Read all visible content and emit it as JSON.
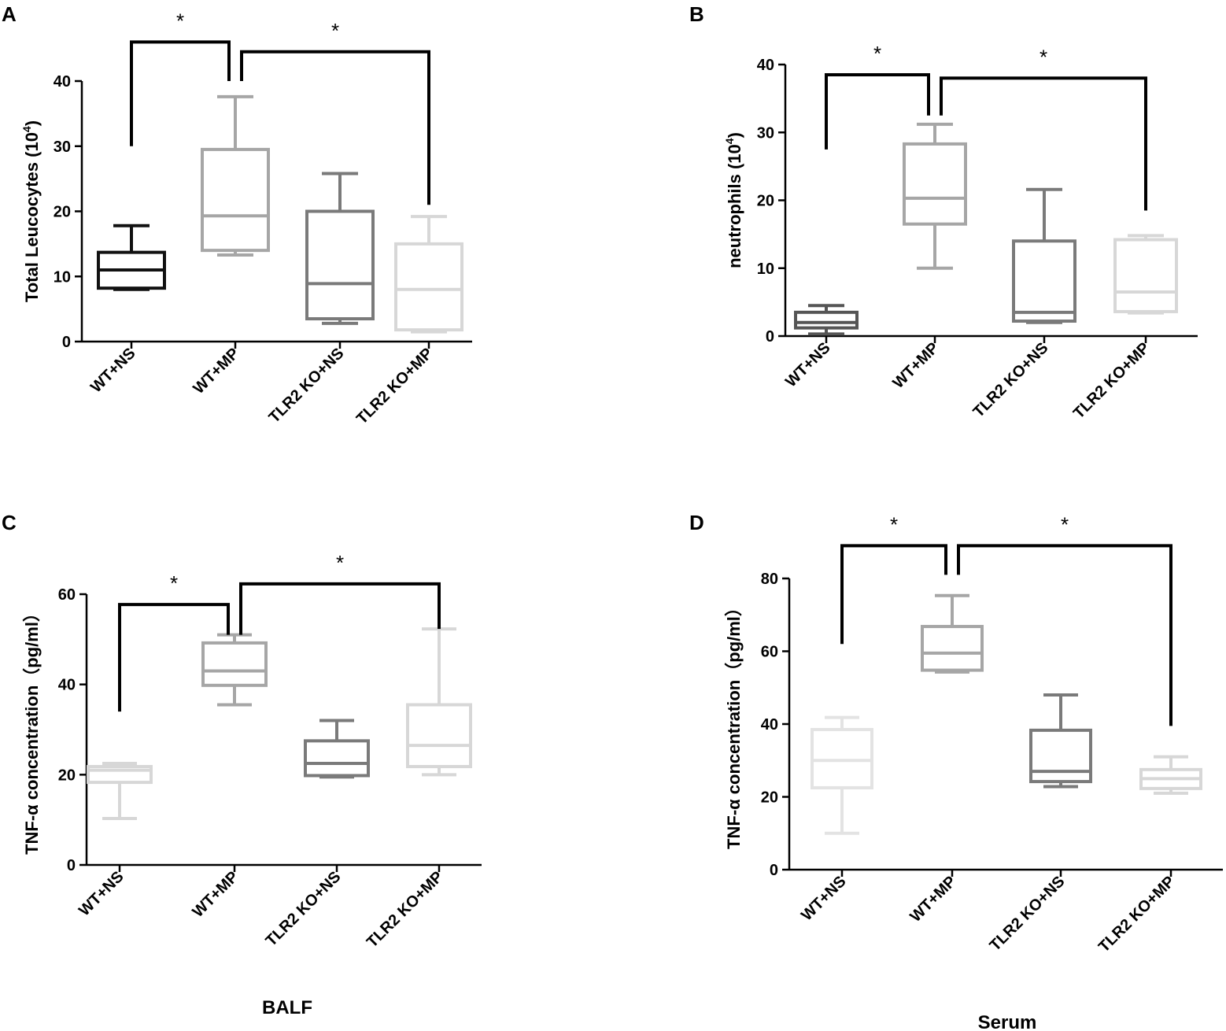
{
  "chart_data": [
    {
      "type": "box",
      "panel": "A",
      "ylabel": "Total Leucocytes (10",
      "ylabel_sup": "4",
      "ylabel_end": ")",
      "xlabel": "",
      "ylim": [
        0,
        40
      ],
      "yticks": [
        0,
        10,
        20,
        30,
        40
      ],
      "categories": [
        "WT+NS",
        "WT+MP",
        "TLR2 KO+NS",
        "TLR2 KO+MP"
      ],
      "colors": [
        "#111111",
        "#a6a6a6",
        "#7a7a7a",
        "#d7d7d7"
      ],
      "boxes": [
        {
          "min": 8,
          "q1": 8.2,
          "median": 11,
          "q3": 13.7,
          "max": 17.8
        },
        {
          "min": 13.3,
          "q1": 14,
          "median": 19.3,
          "q3": 29.5,
          "max": 37.6
        },
        {
          "min": 2.8,
          "q1": 3.5,
          "median": 8.9,
          "q3": 20,
          "max": 25.8
        },
        {
          "min": 1.5,
          "q1": 1.8,
          "median": 8,
          "q3": 15,
          "max": 19.2
        }
      ],
      "significance": [
        {
          "from": 0,
          "to": 1,
          "label": "*",
          "y_from": 30,
          "y_to": 40,
          "y_top": 46
        },
        {
          "from": 1,
          "to": 3,
          "label": "*",
          "y_from": 40,
          "y_to": 21,
          "y_top": 44.5
        }
      ]
    },
    {
      "type": "box",
      "panel": "B",
      "ylabel": "neutrophils (10",
      "ylabel_sup": "4",
      "ylabel_end": ")",
      "xlabel": "",
      "ylim": [
        0,
        40
      ],
      "yticks": [
        0,
        10,
        20,
        30,
        40
      ],
      "categories": [
        "WT+NS",
        "WT+MP",
        "TLR2 KO+NS",
        "TLR2 KO+MP"
      ],
      "colors": [
        "#555555",
        "#a6a6a6",
        "#7a7a7a",
        "#d7d7d7"
      ],
      "boxes": [
        {
          "min": 0.3,
          "q1": 1.2,
          "median": 2,
          "q3": 3.5,
          "max": 4.5
        },
        {
          "min": 10,
          "q1": 16.5,
          "median": 20.3,
          "q3": 28.3,
          "max": 31.2
        },
        {
          "min": 2,
          "q1": 2.2,
          "median": 3.5,
          "q3": 14,
          "max": 21.6
        },
        {
          "min": 3.4,
          "q1": 3.6,
          "median": 6.5,
          "q3": 14.2,
          "max": 14.8
        }
      ],
      "significance": [
        {
          "from": 0,
          "to": 1,
          "label": "*",
          "y_from": 27.5,
          "y_to": 32.5,
          "y_top": 38.5
        },
        {
          "from": 1,
          "to": 3,
          "label": "*",
          "y_from": 32.5,
          "y_to": 18.5,
          "y_top": 38
        }
      ]
    },
    {
      "type": "box",
      "panel": "C",
      "ylabel": "TNF-α concentration（pg/ml）",
      "ylabel_sup": "",
      "ylabel_end": "",
      "xlabel": "BALF",
      "ylim": [
        0,
        60
      ],
      "yticks": [
        0,
        20,
        40,
        60
      ],
      "categories": [
        "WT+NS",
        "WT+MP",
        "TLR2 KO+NS",
        "TLR2 KO+MP"
      ],
      "colors": [
        "#d7d7d7",
        "#a6a6a6",
        "#7a7a7a",
        "#d7d7d7"
      ],
      "boxes": [
        {
          "min": 10.3,
          "q1": 18.3,
          "median": 21,
          "q3": 21.8,
          "max": 22.5
        },
        {
          "min": 35.5,
          "q1": 39.8,
          "median": 43,
          "q3": 49.2,
          "max": 51
        },
        {
          "min": 19.5,
          "q1": 19.8,
          "median": 22.5,
          "q3": 27.5,
          "max": 32
        },
        {
          "min": 20,
          "q1": 21.8,
          "median": 26.5,
          "q3": 35.5,
          "max": 52.3
        }
      ],
      "significance": [
        {
          "from": 0,
          "to": 1,
          "label": "*",
          "y_from": 34,
          "y_to": 51,
          "y_top": 57.7
        },
        {
          "from": 1,
          "to": 3,
          "label": "*",
          "y_from": 51,
          "y_to": 52.3,
          "y_top": 62.3
        }
      ]
    },
    {
      "type": "box",
      "panel": "D",
      "ylabel": "TNF-α concentration（pg/ml）",
      "ylabel_sup": "",
      "ylabel_end": "",
      "xlabel": "Serum",
      "ylim": [
        0,
        80
      ],
      "yticks": [
        0,
        20,
        40,
        60,
        80
      ],
      "categories": [
        "WT+NS",
        "WT+MP",
        "TLR2 KO+NS",
        "TLR2 KO+MP"
      ],
      "colors": [
        "#e3e3e3",
        "#a6a6a6",
        "#7a7a7a",
        "#d7d7d7"
      ],
      "boxes": [
        {
          "min": 10,
          "q1": 22.5,
          "median": 30,
          "q3": 38.5,
          "max": 41.8
        },
        {
          "min": 54.3,
          "q1": 54.8,
          "median": 59.5,
          "q3": 66.8,
          "max": 75.3
        },
        {
          "min": 22.8,
          "q1": 24.2,
          "median": 27,
          "q3": 38.3,
          "max": 48
        },
        {
          "min": 21,
          "q1": 22.3,
          "median": 25,
          "q3": 27.5,
          "max": 31
        }
      ],
      "significance": [
        {
          "from": 0,
          "to": 1,
          "label": "*",
          "y_from": 62,
          "y_to": 81,
          "y_top": 89
        },
        {
          "from": 1,
          "to": 3,
          "label": "*",
          "y_from": 81,
          "y_to": 39.5,
          "y_top": 89
        }
      ]
    }
  ]
}
